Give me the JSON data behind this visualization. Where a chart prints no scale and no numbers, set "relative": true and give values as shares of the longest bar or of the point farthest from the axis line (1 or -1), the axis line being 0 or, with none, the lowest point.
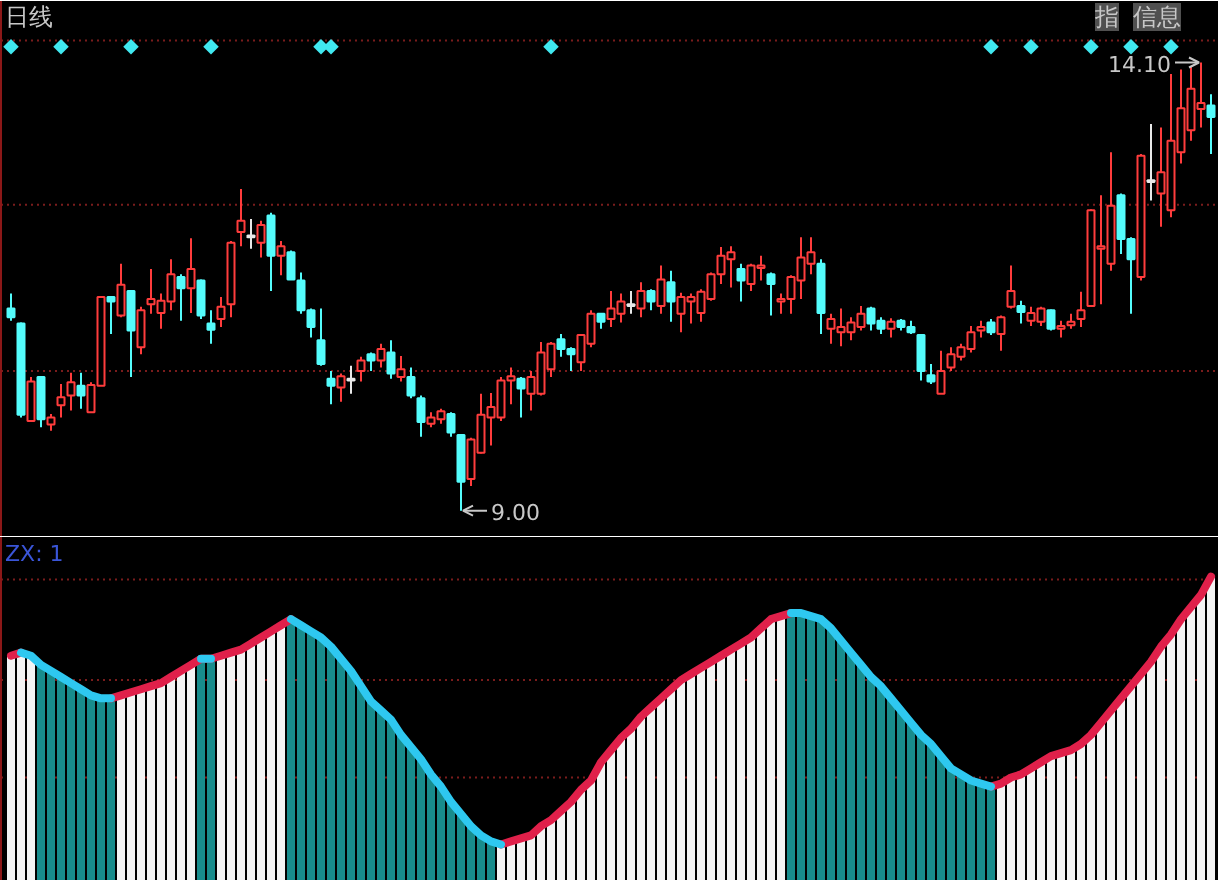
{
  "chart_data": [
    {
      "type": "candlestick",
      "title": "日线",
      "tick_labels": false,
      "ylim": [
        8.7,
        14.8
      ],
      "categories": [
        null,
        null,
        null,
        null,
        null,
        null,
        null,
        null,
        null,
        null,
        null,
        null,
        null,
        null,
        null,
        null,
        null,
        null,
        null,
        null,
        null,
        null,
        null,
        null,
        null,
        null,
        null,
        null,
        null,
        null,
        null,
        null,
        null,
        null,
        null,
        null,
        null,
        null,
        null,
        null,
        null,
        null,
        null,
        null,
        null,
        null,
        null,
        null,
        null,
        null,
        null,
        null,
        null,
        null,
        null,
        null,
        null,
        null,
        null,
        null,
        null,
        null,
        null,
        null,
        null,
        null,
        null,
        null,
        null,
        null,
        null,
        null,
        null,
        null,
        null,
        null,
        null,
        null,
        null,
        null,
        null,
        null,
        null,
        null,
        null,
        null,
        null,
        null,
        null,
        null,
        null,
        null,
        null,
        null,
        null,
        null,
        null,
        null,
        null,
        null,
        null,
        null,
        null,
        null,
        null,
        null,
        null,
        null,
        null,
        null,
        null,
        null,
        null,
        null,
        null,
        null,
        null,
        null,
        null,
        null,
        null
      ],
      "ohlc": [
        [
          11.3,
          11.47,
          11.16,
          11.2
        ],
        [
          11.13,
          11.14,
          10.06,
          10.09
        ],
        [
          10.02,
          10.52,
          10.01,
          10.47
        ],
        [
          10.52,
          10.53,
          9.95,
          10.04
        ],
        [
          9.98,
          10.1,
          9.91,
          10.06
        ],
        [
          10.2,
          10.44,
          10.06,
          10.29
        ],
        [
          10.31,
          10.57,
          10.14,
          10.46
        ],
        [
          10.42,
          10.57,
          10.16,
          10.31
        ],
        [
          10.12,
          10.46,
          10.12,
          10.43
        ],
        [
          10.42,
          11.44,
          10.42,
          11.43
        ],
        [
          11.43,
          11.44,
          11.01,
          11.38
        ],
        [
          11.22,
          11.81,
          11.2,
          11.57
        ],
        [
          11.5,
          11.51,
          10.52,
          11.05
        ],
        [
          10.86,
          11.32,
          10.78,
          11.28
        ],
        [
          11.35,
          11.75,
          11.24,
          11.41
        ],
        [
          11.25,
          11.47,
          11.07,
          11.39
        ],
        [
          11.38,
          11.86,
          11.28,
          11.69
        ],
        [
          11.66,
          11.69,
          11.16,
          11.53
        ],
        [
          11.53,
          12.1,
          11.25,
          11.75
        ],
        [
          11.62,
          11.63,
          11.18,
          11.22
        ],
        [
          11.13,
          11.28,
          10.9,
          11.06
        ],
        [
          11.18,
          11.43,
          11.09,
          11.32
        ],
        [
          11.35,
          12.07,
          11.2,
          12.05
        ],
        [
          12.17,
          12.66,
          12.01,
          12.3
        ],
        [
          12.13,
          12.32,
          11.98,
          12.11
        ],
        [
          12.05,
          12.3,
          11.88,
          12.25
        ],
        [
          12.36,
          12.39,
          11.5,
          11.9
        ],
        [
          11.9,
          12.07,
          11.68,
          12.01
        ],
        [
          11.94,
          11.96,
          11.63,
          11.63
        ],
        [
          11.62,
          11.71,
          11.24,
          11.28
        ],
        [
          11.28,
          11.3,
          10.97,
          11.09
        ],
        [
          10.94,
          11.3,
          10.65,
          10.67
        ],
        [
          10.5,
          10.59,
          10.21,
          10.42
        ],
        [
          10.4,
          10.56,
          10.24,
          10.53
        ],
        [
          10.5,
          10.65,
          10.33,
          10.48
        ],
        [
          10.59,
          10.75,
          10.47,
          10.71
        ],
        [
          10.78,
          10.8,
          10.59,
          10.71
        ],
        [
          10.71,
          10.9,
          10.63,
          10.84
        ],
        [
          10.8,
          10.94,
          10.5,
          10.56
        ],
        [
          10.52,
          10.76,
          10.47,
          10.61
        ],
        [
          10.52,
          10.63,
          10.28,
          10.31
        ],
        [
          10.28,
          10.31,
          9.84,
          10.01
        ],
        [
          9.99,
          10.12,
          9.95,
          10.06
        ],
        [
          10.04,
          10.16,
          9.99,
          10.13
        ],
        [
          10.1,
          10.12,
          9.84,
          9.89
        ],
        [
          9.86,
          9.87,
          9.0,
          9.33
        ],
        [
          9.36,
          9.83,
          9.28,
          9.81
        ],
        [
          9.66,
          10.33,
          9.65,
          10.09
        ],
        [
          10.06,
          10.34,
          9.74,
          10.18
        ],
        [
          10.06,
          10.52,
          10.02,
          10.48
        ],
        [
          10.48,
          10.63,
          10.21,
          10.53
        ],
        [
          10.5,
          10.52,
          10.06,
          10.39
        ],
        [
          10.33,
          10.59,
          10.14,
          10.52
        ],
        [
          10.33,
          10.92,
          10.31,
          10.8
        ],
        [
          10.61,
          10.92,
          10.52,
          10.9
        ],
        [
          10.95,
          11.01,
          10.75,
          10.84
        ],
        [
          10.84,
          10.86,
          10.59,
          10.78
        ],
        [
          10.69,
          11.01,
          10.59,
          11.0
        ],
        [
          10.9,
          11.28,
          10.86,
          11.24
        ],
        [
          11.24,
          11.25,
          11.07,
          11.15
        ],
        [
          11.18,
          11.5,
          11.09,
          11.3
        ],
        [
          11.24,
          11.47,
          11.14,
          11.38
        ],
        [
          11.35,
          11.5,
          11.24,
          11.33
        ],
        [
          11.3,
          11.6,
          11.2,
          11.5
        ],
        [
          11.5,
          11.52,
          11.28,
          11.38
        ],
        [
          11.33,
          11.79,
          11.24,
          11.63
        ],
        [
          11.6,
          11.73,
          11.15,
          11.38
        ],
        [
          11.24,
          11.48,
          11.03,
          11.43
        ],
        [
          11.38,
          11.47,
          11.13,
          11.43
        ],
        [
          11.25,
          11.52,
          11.15,
          11.49
        ],
        [
          11.41,
          11.71,
          11.39,
          11.69
        ],
        [
          11.69,
          12.0,
          11.58,
          11.9
        ],
        [
          11.86,
          12.01,
          11.54,
          11.94
        ],
        [
          11.75,
          11.81,
          11.38,
          11.62
        ],
        [
          11.58,
          11.81,
          11.5,
          11.79
        ],
        [
          11.76,
          11.9,
          11.62,
          11.79
        ],
        [
          11.69,
          11.71,
          11.22,
          11.58
        ],
        [
          11.38,
          11.47,
          11.24,
          11.41
        ],
        [
          11.41,
          11.68,
          11.24,
          11.66
        ],
        [
          11.62,
          12.11,
          11.41,
          11.88
        ],
        [
          11.81,
          12.11,
          11.69,
          11.94
        ],
        [
          11.81,
          11.86,
          11.01,
          11.25
        ],
        [
          11.07,
          11.24,
          10.9,
          11.18
        ],
        [
          11.03,
          11.3,
          10.87,
          11.09
        ],
        [
          11.03,
          11.2,
          10.94,
          11.14
        ],
        [
          11.09,
          11.33,
          11.05,
          11.24
        ],
        [
          11.3,
          11.32,
          11.05,
          11.13
        ],
        [
          11.16,
          11.2,
          11.01,
          11.07
        ],
        [
          11.07,
          11.19,
          10.97,
          11.15
        ],
        [
          11.16,
          11.18,
          11.05,
          11.09
        ],
        [
          11.09,
          11.16,
          11.01,
          11.03
        ],
        [
          11.0,
          11.01,
          10.48,
          10.59
        ],
        [
          10.54,
          10.67,
          10.44,
          10.47
        ],
        [
          10.33,
          10.82,
          10.33,
          10.59
        ],
        [
          10.63,
          10.86,
          10.59,
          10.78
        ],
        [
          10.75,
          10.9,
          10.71,
          10.86
        ],
        [
          10.84,
          11.1,
          10.8,
          11.03
        ],
        [
          11.05,
          11.16,
          10.97,
          11.09
        ],
        [
          11.14,
          11.18,
          11.0,
          11.03
        ],
        [
          11.01,
          11.22,
          10.82,
          11.2
        ],
        [
          11.32,
          11.79,
          11.3,
          11.5
        ],
        [
          11.33,
          11.39,
          11.13,
          11.26
        ],
        [
          11.16,
          11.32,
          11.1,
          11.25
        ],
        [
          11.15,
          11.32,
          11.1,
          11.3
        ],
        [
          11.28,
          11.29,
          11.05,
          11.07
        ],
        [
          11.07,
          11.16,
          10.97,
          11.1
        ],
        [
          11.11,
          11.24,
          11.07,
          11.15
        ],
        [
          11.18,
          11.49,
          11.09,
          11.28
        ],
        [
          11.33,
          12.43,
          11.32,
          12.42
        ],
        [
          11.98,
          12.59,
          11.35,
          12.01
        ],
        [
          11.81,
          13.08,
          11.73,
          12.47
        ],
        [
          12.59,
          12.61,
          11.92,
          12.09
        ],
        [
          12.09,
          12.11,
          11.24,
          11.86
        ],
        [
          11.66,
          13.06,
          11.62,
          13.04
        ],
        [
          12.76,
          13.4,
          12.53,
          12.74
        ],
        [
          12.61,
          13.36,
          12.23,
          12.85
        ],
        [
          12.42,
          13.97,
          12.34,
          13.21
        ],
        [
          13.08,
          14.02,
          12.95,
          13.58
        ],
        [
          13.33,
          14.05,
          13.21,
          13.8
        ],
        [
          13.57,
          14.1,
          13.36,
          13.64
        ],
        [
          13.61,
          13.74,
          13.06,
          13.48
        ]
      ],
      "colors": [
        "#54fcfc",
        "#54fcfc",
        "#ff3c3c",
        "#54fcfc",
        "#ff3c3c",
        "#ff3c3c",
        "#ff3c3c",
        "#54fcfc",
        "#ff3c3c",
        "#ff3c3c",
        "#54fcfc",
        "#ff3c3c",
        "#54fcfc",
        "#ff3c3c",
        "#ff3c3c",
        "#ff3c3c",
        "#ff3c3c",
        "#54fcfc",
        "#ff3c3c",
        "#54fcfc",
        "#54fcfc",
        "#ff3c3c",
        "#ff3c3c",
        "#ff3c3c",
        "#e8e8e8",
        "#ff3c3c",
        "#54fcfc",
        "#ff3c3c",
        "#54fcfc",
        "#54fcfc",
        "#54fcfc",
        "#54fcfc",
        "#54fcfc",
        "#ff3c3c",
        "#e8e8e8",
        "#ff3c3c",
        "#54fcfc",
        "#ff3c3c",
        "#54fcfc",
        "#ff3c3c",
        "#54fcfc",
        "#54fcfc",
        "#ff3c3c",
        "#ff3c3c",
        "#54fcfc",
        "#54fcfc",
        "#ff3c3c",
        "#ff3c3c",
        "#ff3c3c",
        "#ff3c3c",
        "#ff3c3c",
        "#54fcfc",
        "#ff3c3c",
        "#ff3c3c",
        "#ff3c3c",
        "#54fcfc",
        "#54fcfc",
        "#ff3c3c",
        "#ff3c3c",
        "#54fcfc",
        "#ff3c3c",
        "#ff3c3c",
        "#e8e8e8",
        "#ff3c3c",
        "#54fcfc",
        "#ff3c3c",
        "#54fcfc",
        "#ff3c3c",
        "#ff3c3c",
        "#ff3c3c",
        "#ff3c3c",
        "#ff3c3c",
        "#ff3c3c",
        "#54fcfc",
        "#ff3c3c",
        "#ff3c3c",
        "#54fcfc",
        "#ff3c3c",
        "#ff3c3c",
        "#ff3c3c",
        "#ff3c3c",
        "#54fcfc",
        "#ff3c3c",
        "#ff3c3c",
        "#ff3c3c",
        "#ff3c3c",
        "#54fcfc",
        "#54fcfc",
        "#ff3c3c",
        "#54fcfc",
        "#54fcfc",
        "#54fcfc",
        "#54fcfc",
        "#ff3c3c",
        "#ff3c3c",
        "#ff3c3c",
        "#ff3c3c",
        "#ff3c3c",
        "#54fcfc",
        "#ff3c3c",
        "#ff3c3c",
        "#54fcfc",
        "#ff3c3c",
        "#ff3c3c",
        "#54fcfc",
        "#ff3c3c",
        "#ff3c3c",
        "#ff3c3c",
        "#ff3c3c",
        "#ff3c3c",
        "#ff3c3c",
        "#54fcfc",
        "#54fcfc",
        "#ff3c3c",
        "#e8e8e8",
        "#ff3c3c",
        "#ff3c3c",
        "#ff3c3c",
        "#ff3c3c",
        "#ff3c3c",
        "#54fcfc"
      ],
      "series": [
        {
          "type": "scatter",
          "marker": "diamond",
          "color": "#40e8f0",
          "values": [
            14.28,
            null,
            null,
            null,
            null,
            14.28,
            null,
            null,
            null,
            null,
            null,
            null,
            14.28,
            null,
            null,
            null,
            null,
            null,
            null,
            null,
            14.28,
            null,
            null,
            null,
            null,
            null,
            null,
            null,
            null,
            null,
            null,
            14.28,
            14.28,
            null,
            null,
            null,
            null,
            null,
            null,
            null,
            null,
            null,
            null,
            null,
            null,
            null,
            null,
            null,
            null,
            null,
            null,
            null,
            null,
            null,
            14.28,
            null,
            null,
            null,
            null,
            null,
            null,
            null,
            null,
            null,
            null,
            null,
            null,
            null,
            null,
            null,
            null,
            null,
            null,
            null,
            null,
            null,
            null,
            null,
            null,
            null,
            null,
            null,
            null,
            null,
            null,
            null,
            null,
            null,
            null,
            null,
            null,
            null,
            null,
            null,
            null,
            null,
            null,
            null,
            14.28,
            null,
            null,
            null,
            14.28,
            null,
            null,
            null,
            null,
            null,
            14.28,
            null,
            null,
            null,
            14.28,
            null,
            null,
            null,
            14.28,
            null,
            null,
            null,
            null
          ]
        }
      ],
      "ref_lines": [
        {
          "axis": "y",
          "value": 14.35,
          "color": "#7a1c1c",
          "line_style": "dotted"
        },
        {
          "axis": "y",
          "value": 12.48,
          "color": "#7a1c1c",
          "line_style": "dotted"
        },
        {
          "axis": "y",
          "value": 10.59,
          "color": "#7a1c1c",
          "line_style": "dotted"
        }
      ],
      "annotations": [
        "指",
        "信息",
        "14.10",
        "9.00"
      ]
    },
    {
      "type": "bar",
      "relative": true,
      "categories": [
        null,
        null,
        null,
        null,
        null,
        null,
        null,
        null,
        null,
        null,
        null,
        null,
        null,
        null,
        null,
        null,
        null,
        null,
        null,
        null,
        null,
        null,
        null,
        null,
        null,
        null,
        null,
        null,
        null,
        null,
        null,
        null,
        null,
        null,
        null,
        null,
        null,
        null,
        null,
        null,
        null,
        null,
        null,
        null,
        null,
        null,
        null,
        null,
        null,
        null,
        null,
        null,
        null,
        null,
        null,
        null,
        null,
        null,
        null,
        null,
        null,
        null,
        null,
        null,
        null,
        null,
        null,
        null,
        null,
        null,
        null,
        null,
        null,
        null,
        null,
        null,
        null,
        null,
        null,
        null,
        null,
        null,
        null,
        null,
        null,
        null,
        null,
        null,
        null,
        null,
        null,
        null,
        null,
        null,
        null,
        null,
        null,
        null,
        null,
        null,
        null,
        null,
        null,
        null,
        null,
        null,
        null,
        null,
        null,
        null,
        null,
        null,
        null,
        null,
        null,
        null,
        null,
        null,
        null,
        null,
        null
      ],
      "series": [
        {
          "values": [
            0.74,
            0.75,
            0.74,
            0.71,
            0.69,
            0.67,
            0.65,
            0.63,
            0.61,
            0.6,
            0.6,
            0.61,
            0.62,
            0.63,
            0.64,
            0.65,
            0.67,
            0.69,
            0.71,
            0.73,
            0.73,
            0.74,
            0.75,
            0.76,
            0.78,
            0.8,
            0.82,
            0.84,
            0.86,
            0.84,
            0.82,
            0.8,
            0.77,
            0.73,
            0.69,
            0.64,
            0.59,
            0.56,
            0.53,
            0.48,
            0.44,
            0.4,
            0.35,
            0.31,
            0.26,
            0.22,
            0.18,
            0.15,
            0.13,
            0.12,
            0.13,
            0.14,
            0.15,
            0.18,
            0.2,
            0.23,
            0.26,
            0.3,
            0.33,
            0.39,
            0.43,
            0.47,
            0.5,
            0.54,
            0.57,
            0.6,
            0.63,
            0.66,
            0.68,
            0.7,
            0.72,
            0.74,
            0.76,
            0.78,
            0.8,
            0.83,
            0.86,
            0.87,
            0.88,
            0.88,
            0.87,
            0.86,
            0.83,
            0.79,
            0.75,
            0.71,
            0.67,
            0.64,
            0.6,
            0.56,
            0.52,
            0.48,
            0.45,
            0.41,
            0.37,
            0.35,
            0.33,
            0.32,
            0.31,
            0.32,
            0.34,
            0.35,
            0.37,
            0.39,
            0.41,
            0.42,
            0.43,
            0.45,
            0.48,
            0.52,
            0.56,
            0.6,
            0.64,
            0.68,
            0.72,
            0.77,
            0.81,
            0.86,
            0.9,
            0.94,
            1
          ],
          "colors": [
            "#f4f4f4",
            "#f4f4f4",
            "#f4f4f4",
            "#188c8c",
            "#188c8c",
            "#188c8c",
            "#188c8c",
            "#188c8c",
            "#188c8c",
            "#188c8c",
            "#188c8c",
            "#f4f4f4",
            "#f4f4f4",
            "#f4f4f4",
            "#f4f4f4",
            "#f4f4f4",
            "#f4f4f4",
            "#f4f4f4",
            "#f4f4f4",
            "#188c8c",
            "#188c8c",
            "#f4f4f4",
            "#f4f4f4",
            "#f4f4f4",
            "#f4f4f4",
            "#f4f4f4",
            "#f4f4f4",
            "#f4f4f4",
            "#188c8c",
            "#188c8c",
            "#188c8c",
            "#188c8c",
            "#188c8c",
            "#188c8c",
            "#188c8c",
            "#188c8c",
            "#188c8c",
            "#188c8c",
            "#188c8c",
            "#188c8c",
            "#188c8c",
            "#188c8c",
            "#188c8c",
            "#188c8c",
            "#188c8c",
            "#188c8c",
            "#188c8c",
            "#188c8c",
            "#188c8c",
            "#f4f4f4",
            "#f4f4f4",
            "#f4f4f4",
            "#f4f4f4",
            "#f4f4f4",
            "#f4f4f4",
            "#f4f4f4",
            "#f4f4f4",
            "#f4f4f4",
            "#f4f4f4",
            "#f4f4f4",
            "#f4f4f4",
            "#f4f4f4",
            "#f4f4f4",
            "#f4f4f4",
            "#f4f4f4",
            "#f4f4f4",
            "#f4f4f4",
            "#f4f4f4",
            "#f4f4f4",
            "#f4f4f4",
            "#f4f4f4",
            "#f4f4f4",
            "#f4f4f4",
            "#f4f4f4",
            "#f4f4f4",
            "#f4f4f4",
            "#f4f4f4",
            "#f4f4f4",
            "#188c8c",
            "#188c8c",
            "#188c8c",
            "#188c8c",
            "#188c8c",
            "#188c8c",
            "#188c8c",
            "#188c8c",
            "#188c8c",
            "#188c8c",
            "#188c8c",
            "#188c8c",
            "#188c8c",
            "#188c8c",
            "#188c8c",
            "#188c8c",
            "#188c8c",
            "#188c8c",
            "#188c8c",
            "#188c8c",
            "#188c8c",
            "#f4f4f4",
            "#f4f4f4",
            "#f4f4f4",
            "#f4f4f4",
            "#f4f4f4",
            "#f4f4f4",
            "#f4f4f4",
            "#f4f4f4",
            "#f4f4f4",
            "#f4f4f4",
            "#f4f4f4",
            "#f4f4f4",
            "#f4f4f4",
            "#f4f4f4",
            "#f4f4f4",
            "#f4f4f4",
            "#f4f4f4",
            "#f4f4f4",
            "#f4f4f4",
            "#f4f4f4",
            "#f4f4f4",
            "#f4f4f4"
          ]
        },
        {
          "type": "line",
          "color": "#e0204a",
          "values": [
            0.74,
            0.75,
            null,
            null,
            null,
            null,
            null,
            null,
            null,
            null,
            0.6,
            0.61,
            0.62,
            0.63,
            0.64,
            0.65,
            0.67,
            0.69,
            0.71,
            0.73,
            0.73,
            0.74,
            0.75,
            0.76,
            0.78,
            0.8,
            0.82,
            0.84,
            0.86,
            null,
            null,
            null,
            null,
            null,
            null,
            null,
            null,
            null,
            null,
            null,
            null,
            null,
            null,
            null,
            null,
            null,
            null,
            null,
            null,
            0.12,
            0.13,
            0.14,
            0.15,
            0.18,
            0.2,
            0.23,
            0.26,
            0.3,
            0.33,
            0.39,
            0.43,
            0.47,
            0.5,
            0.54,
            0.57,
            0.6,
            0.63,
            0.66,
            0.68,
            0.7,
            0.72,
            0.74,
            0.76,
            0.78,
            0.8,
            0.83,
            0.86,
            0.87,
            0.88,
            null,
            null,
            null,
            null,
            null,
            null,
            null,
            null,
            null,
            null,
            null,
            null,
            null,
            null,
            null,
            null,
            null,
            null,
            null,
            0.31,
            0.32,
            0.34,
            0.35,
            0.37,
            0.39,
            0.41,
            0.42,
            0.43,
            0.45,
            0.48,
            0.52,
            0.56,
            0.6,
            0.64,
            0.68,
            0.72,
            0.77,
            0.81,
            0.86,
            0.9,
            0.94,
            1
          ]
        },
        {
          "type": "line",
          "color": "#2ec8f0",
          "values": [
            null,
            0.75,
            0.74,
            0.71,
            0.69,
            0.67,
            0.65,
            0.63,
            0.61,
            0.6,
            0.6,
            null,
            null,
            null,
            null,
            null,
            null,
            null,
            null,
            0.73,
            0.73,
            null,
            null,
            null,
            null,
            null,
            null,
            null,
            0.86,
            0.84,
            0.82,
            0.8,
            0.77,
            0.73,
            0.69,
            0.64,
            0.59,
            0.56,
            0.53,
            0.48,
            0.44,
            0.4,
            0.35,
            0.31,
            0.26,
            0.22,
            0.18,
            0.15,
            0.13,
            0.12,
            null,
            null,
            null,
            null,
            null,
            null,
            null,
            null,
            null,
            null,
            null,
            null,
            null,
            null,
            null,
            null,
            null,
            null,
            null,
            null,
            null,
            null,
            null,
            null,
            null,
            null,
            null,
            null,
            0.88,
            0.88,
            0.87,
            0.86,
            0.83,
            0.79,
            0.75,
            0.71,
            0.67,
            0.64,
            0.6,
            0.56,
            0.52,
            0.48,
            0.45,
            0.41,
            0.37,
            0.35,
            0.33,
            0.32,
            0.31,
            null,
            null,
            null,
            null,
            null,
            null,
            null,
            null,
            null,
            null,
            null,
            null,
            null,
            null,
            null,
            null,
            null,
            null,
            null,
            null,
            null,
            null
          ]
        }
      ],
      "ref_lines": [
        {
          "axis": "y",
          "value": 0.99,
          "color": "#7a1c1c",
          "line_style": "dotted"
        },
        {
          "axis": "y",
          "value": 0.66,
          "color": "#7a1c1c",
          "line_style": "dotted"
        },
        {
          "axis": "y",
          "value": 0.34,
          "color": "#7a1c1c",
          "line_style": "dotted"
        }
      ],
      "annotations": [
        "ZX: 1"
      ]
    }
  ]
}
